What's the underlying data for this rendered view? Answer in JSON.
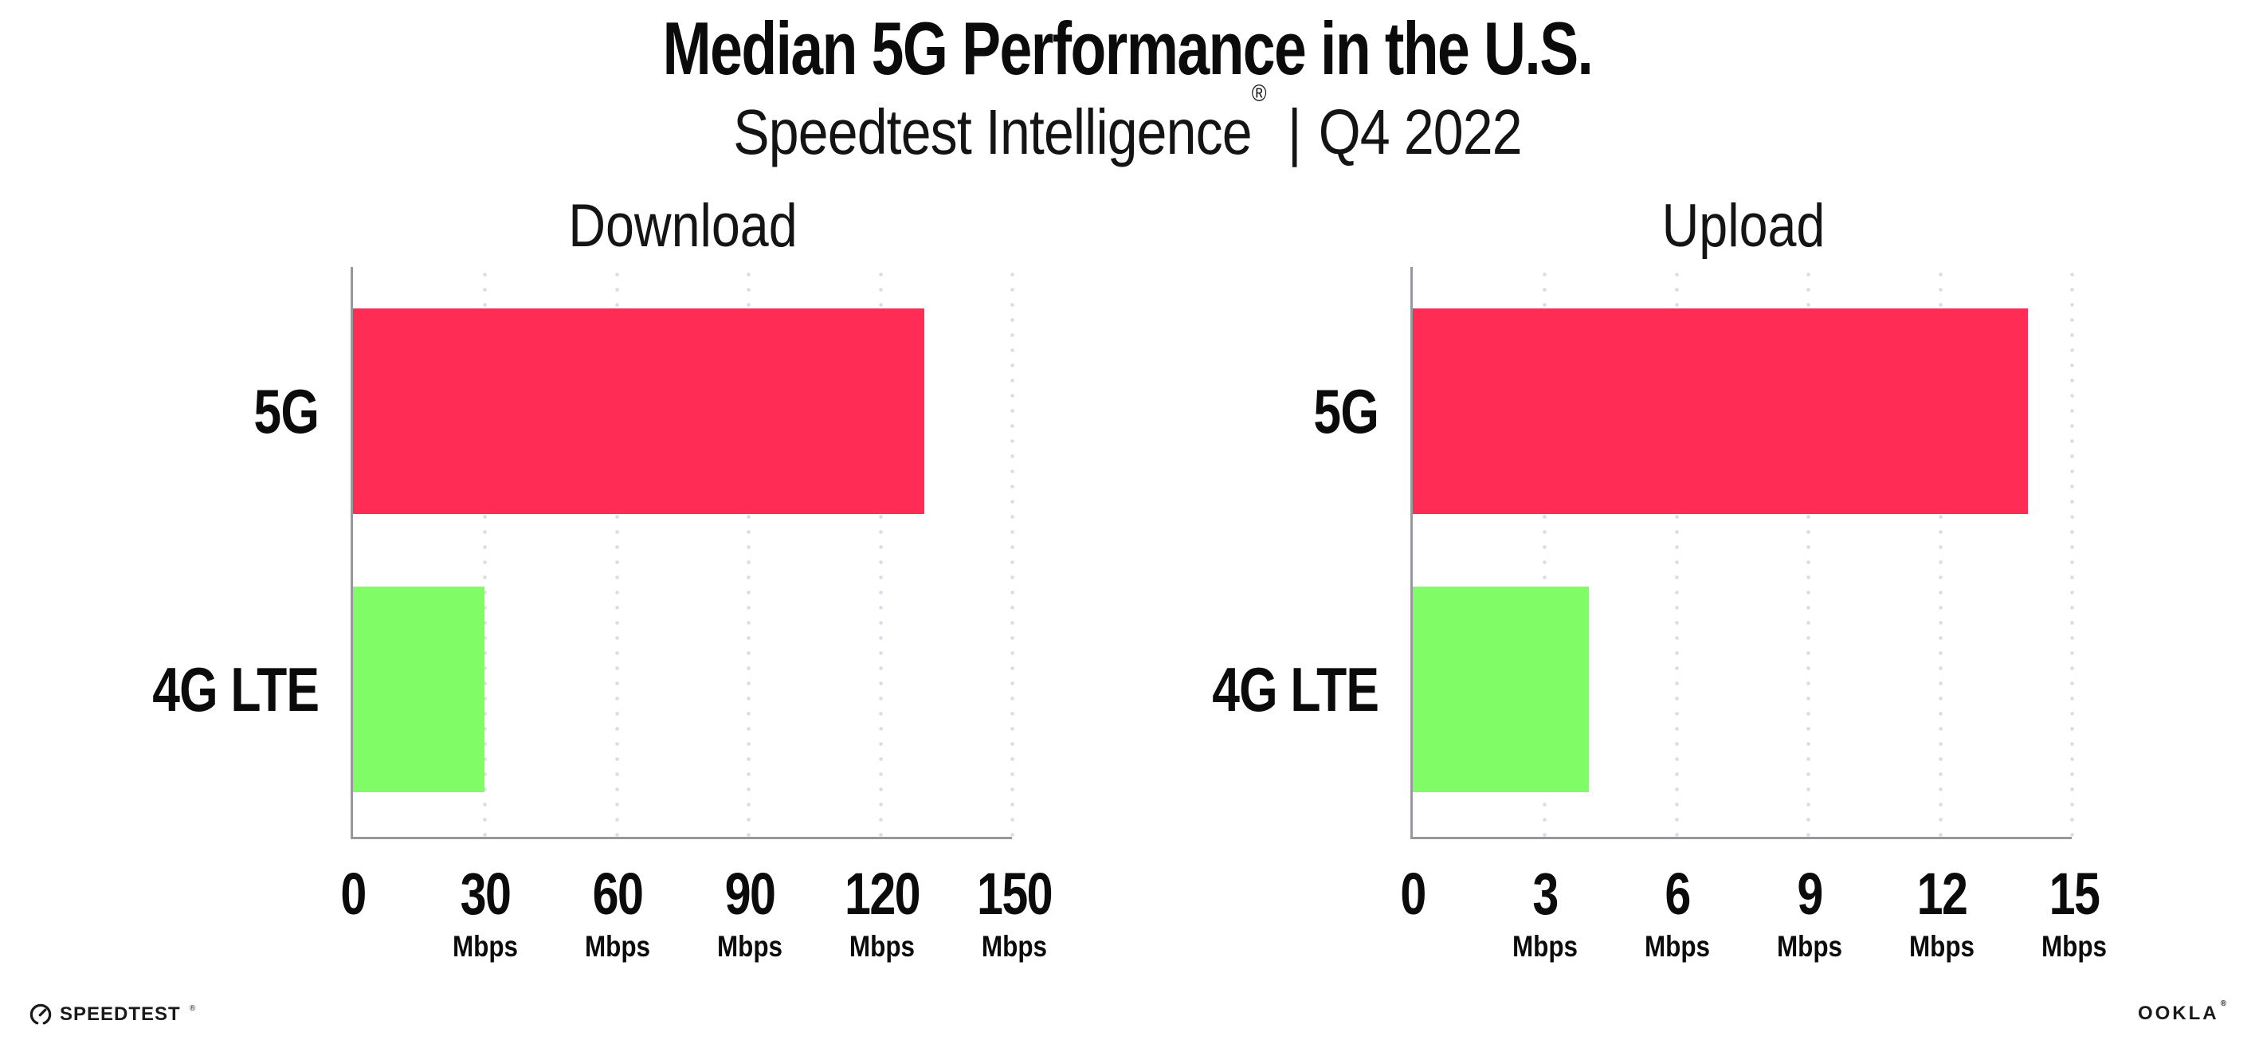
{
  "title": "Median 5G Performance in the U.S.",
  "subtitle": {
    "brand": "Speedtest Intelligence",
    "registered": "®",
    "separator": "|",
    "period": "Q4 2022"
  },
  "colors": {
    "bar_5g": "#FF2D55",
    "bar_4g_lte": "#7FFC66",
    "gridline": "#DCDCE8",
    "axis": "#97979C",
    "text": "#0B0B0B"
  },
  "chart_data": [
    {
      "type": "bar",
      "orientation": "horizontal",
      "title": "Download",
      "categories": [
        "5G",
        "4G LTE"
      ],
      "values": [
        130,
        30
      ],
      "unit": "Mbps",
      "xlim": [
        0,
        150
      ],
      "xticks": [
        0,
        30,
        60,
        90,
        120,
        150
      ],
      "ticks": [
        {
          "label": "0",
          "unit": ""
        },
        {
          "label": "30",
          "unit": "Mbps"
        },
        {
          "label": "60",
          "unit": "Mbps"
        },
        {
          "label": "90",
          "unit": "Mbps"
        },
        {
          "label": "120",
          "unit": "Mbps"
        },
        {
          "label": "150",
          "unit": "Mbps"
        }
      ],
      "bar_colors": [
        "#FF2D55",
        "#7FFC66"
      ],
      "grid": "vertical-dotted",
      "legend": "none"
    },
    {
      "type": "bar",
      "orientation": "horizontal",
      "title": "Upload",
      "categories": [
        "5G",
        "4G LTE"
      ],
      "values": [
        14,
        4
      ],
      "unit": "Mbps",
      "xlim": [
        0,
        15
      ],
      "xticks": [
        0,
        3,
        6,
        9,
        12,
        15
      ],
      "ticks": [
        {
          "label": "0",
          "unit": ""
        },
        {
          "label": "3",
          "unit": "Mbps"
        },
        {
          "label": "6",
          "unit": "Mbps"
        },
        {
          "label": "9",
          "unit": "Mbps"
        },
        {
          "label": "12",
          "unit": "Mbps"
        },
        {
          "label": "15",
          "unit": "Mbps"
        }
      ],
      "bar_colors": [
        "#FF2D55",
        "#7FFC66"
      ],
      "grid": "vertical-dotted",
      "legend": "none"
    }
  ],
  "footer": {
    "speedtest_label": "SPEEDTEST",
    "speedtest_registered": "®",
    "ookla_label": "OOKLA",
    "ookla_registered": "®"
  }
}
